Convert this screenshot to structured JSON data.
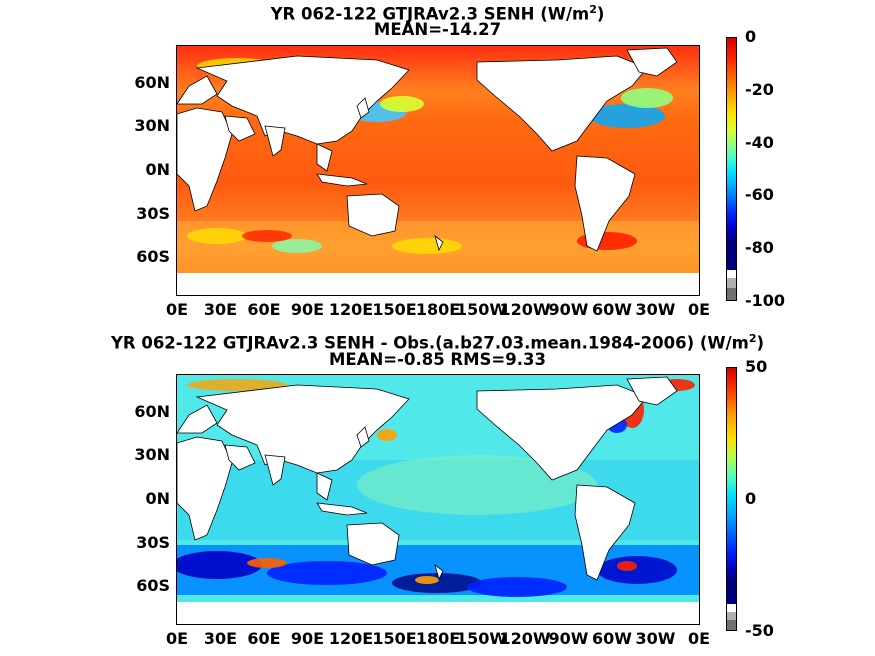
{
  "top_title_line1": "YR 062-122 GTJRAv2.3  SENH (W/m",
  "top_title_sup": "2",
  "top_title_close": ")",
  "top_title_line2": "MEAN=-14.27",
  "bottom_title_line1": "YR 062-122 GTJRAv2.3 SENH - Obs.(a.b27.03.mean.1984-2006) (W/m",
  "bottom_title_sup": "2",
  "bottom_title_close": ")",
  "bottom_title_line2": "MEAN=-0.85 RMS=9.33",
  "colors": {
    "land": "#ffffff",
    "coast": "#000000",
    "palette": [
      "#ffffff",
      "#b0b0b0",
      "#00007f",
      "#0000c8",
      "#0022ff",
      "#0066ff",
      "#00aaff",
      "#00e0ff",
      "#40ffd0",
      "#90ff80",
      "#d8ff30",
      "#ffe000",
      "#ffa000",
      "#ff6000",
      "#ff2000",
      "#d00000"
    ]
  },
  "chart_data": [
    {
      "type": "heatmap",
      "title": "YR 062-122 GTJRAv2.3  SENH (W/m2)",
      "subtitle": "MEAN=-14.27",
      "x_ticks": [
        "0E",
        "30E",
        "60E",
        "90E",
        "120E",
        "150E",
        "180E",
        "150W",
        "120W",
        "90W",
        "60W",
        "30W",
        "0E"
      ],
      "y_ticks": [
        "60N",
        "30N",
        "0N",
        "30S",
        "60S"
      ],
      "colorbar_ticks": [
        "0",
        "-20",
        "-40",
        "-60",
        "-80",
        "-100"
      ],
      "colorbar_range": [
        -100,
        0
      ],
      "mean": -14.27
    },
    {
      "type": "heatmap",
      "title": "YR 062-122 GTJRAv2.3 SENH - Obs.(a.b27.03.mean.1984-2006) (W/m2)",
      "subtitle": "MEAN=-0.85 RMS=9.33",
      "x_ticks": [
        "0E",
        "30E",
        "60E",
        "90E",
        "120E",
        "150E",
        "180E",
        "150W",
        "120W",
        "90W",
        "60W",
        "30W",
        "0E"
      ],
      "y_ticks": [
        "60N",
        "30N",
        "0N",
        "30S",
        "60S"
      ],
      "colorbar_ticks": [
        "50",
        "0",
        "-50"
      ],
      "colorbar_range": [
        -50,
        50
      ],
      "mean": -0.85,
      "rms": 9.33
    }
  ]
}
